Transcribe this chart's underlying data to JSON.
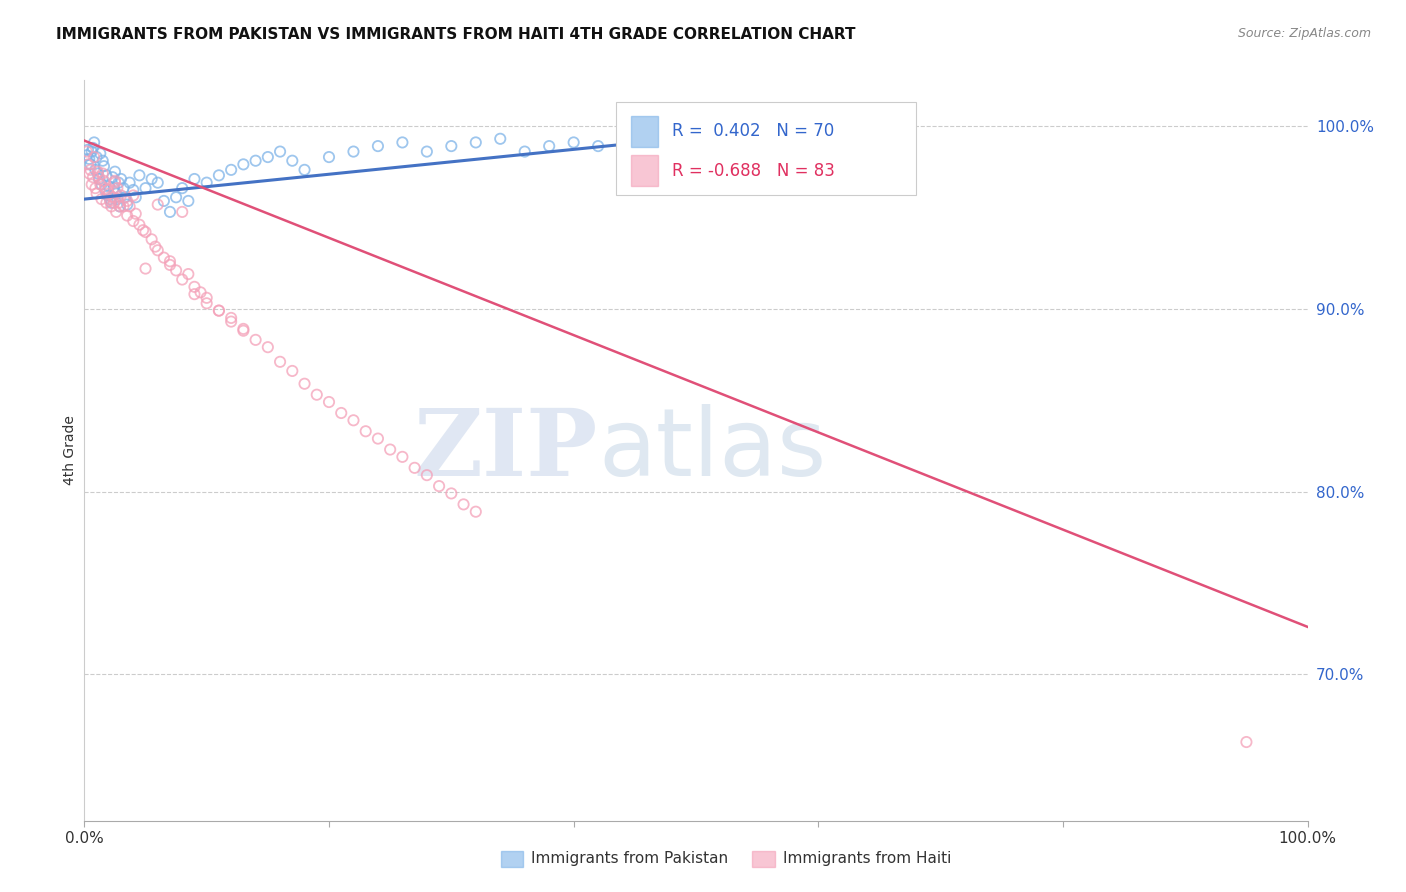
{
  "title": "IMMIGRANTS FROM PAKISTAN VS IMMIGRANTS FROM HAITI 4TH GRADE CORRELATION CHART",
  "source": "Source: ZipAtlas.com",
  "ylabel": "4th Grade",
  "xlim": [
    0.0,
    1.0
  ],
  "ylim": [
    0.62,
    1.025
  ],
  "yticks": [
    0.7,
    0.8,
    0.9,
    1.0
  ],
  "ytick_labels": [
    "70.0%",
    "80.0%",
    "90.0%",
    "100.0%"
  ],
  "pakistan_R": 0.402,
  "pakistan_N": 70,
  "haiti_R": -0.688,
  "haiti_N": 83,
  "pakistan_color": "#7EB3E8",
  "haiti_color": "#F4A0B8",
  "pakistan_line_color": "#4472C4",
  "haiti_line_color": "#E05078",
  "pakistan_scatter_x": [
    0.002,
    0.003,
    0.004,
    0.005,
    0.006,
    0.007,
    0.008,
    0.009,
    0.01,
    0.011,
    0.012,
    0.013,
    0.014,
    0.015,
    0.016,
    0.017,
    0.018,
    0.019,
    0.02,
    0.021,
    0.022,
    0.023,
    0.024,
    0.025,
    0.026,
    0.027,
    0.028,
    0.029,
    0.03,
    0.032,
    0.033,
    0.035,
    0.037,
    0.04,
    0.042,
    0.045,
    0.05,
    0.055,
    0.06,
    0.065,
    0.07,
    0.075,
    0.08,
    0.085,
    0.09,
    0.1,
    0.11,
    0.12,
    0.13,
    0.14,
    0.15,
    0.16,
    0.17,
    0.18,
    0.2,
    0.22,
    0.24,
    0.26,
    0.28,
    0.3,
    0.32,
    0.34,
    0.36,
    0.38,
    0.4,
    0.42,
    0.44,
    0.46,
    0.48,
    0.5
  ],
  "pakistan_scatter_y": [
    0.984,
    0.987,
    0.982,
    0.979,
    0.986,
    0.988,
    0.991,
    0.976,
    0.983,
    0.974,
    0.971,
    0.985,
    0.968,
    0.981,
    0.978,
    0.965,
    0.973,
    0.962,
    0.967,
    0.96,
    0.958,
    0.972,
    0.966,
    0.975,
    0.963,
    0.96,
    0.969,
    0.956,
    0.971,
    0.966,
    0.961,
    0.957,
    0.969,
    0.965,
    0.961,
    0.973,
    0.966,
    0.971,
    0.969,
    0.959,
    0.953,
    0.961,
    0.966,
    0.959,
    0.971,
    0.969,
    0.973,
    0.976,
    0.979,
    0.981,
    0.983,
    0.986,
    0.981,
    0.976,
    0.983,
    0.986,
    0.989,
    0.991,
    0.986,
    0.989,
    0.991,
    0.993,
    0.986,
    0.989,
    0.991,
    0.989,
    0.991,
    0.993,
    0.989,
    0.991
  ],
  "haiti_scatter_x": [
    0.002,
    0.003,
    0.004,
    0.005,
    0.006,
    0.007,
    0.008,
    0.009,
    0.01,
    0.011,
    0.012,
    0.013,
    0.014,
    0.015,
    0.016,
    0.017,
    0.018,
    0.019,
    0.02,
    0.021,
    0.022,
    0.023,
    0.024,
    0.025,
    0.026,
    0.027,
    0.028,
    0.029,
    0.03,
    0.032,
    0.035,
    0.037,
    0.04,
    0.042,
    0.045,
    0.048,
    0.05,
    0.055,
    0.058,
    0.06,
    0.065,
    0.07,
    0.075,
    0.08,
    0.085,
    0.09,
    0.095,
    0.1,
    0.11,
    0.12,
    0.13,
    0.14,
    0.15,
    0.16,
    0.17,
    0.18,
    0.19,
    0.2,
    0.21,
    0.22,
    0.23,
    0.24,
    0.25,
    0.26,
    0.27,
    0.28,
    0.29,
    0.3,
    0.31,
    0.32,
    0.04,
    0.06,
    0.08,
    0.1,
    0.12,
    0.05,
    0.07,
    0.09,
    0.11,
    0.13,
    0.025,
    0.035,
    0.95
  ],
  "haiti_scatter_y": [
    0.986,
    0.979,
    0.974,
    0.976,
    0.968,
    0.972,
    0.983,
    0.966,
    0.963,
    0.975,
    0.972,
    0.968,
    0.96,
    0.974,
    0.97,
    0.966,
    0.958,
    0.965,
    0.963,
    0.959,
    0.956,
    0.961,
    0.958,
    0.97,
    0.953,
    0.966,
    0.958,
    0.956,
    0.962,
    0.956,
    0.951,
    0.956,
    0.948,
    0.952,
    0.946,
    0.943,
    0.942,
    0.938,
    0.934,
    0.932,
    0.928,
    0.924,
    0.921,
    0.916,
    0.919,
    0.912,
    0.909,
    0.906,
    0.899,
    0.893,
    0.889,
    0.883,
    0.879,
    0.871,
    0.866,
    0.859,
    0.853,
    0.849,
    0.843,
    0.839,
    0.833,
    0.829,
    0.823,
    0.819,
    0.813,
    0.809,
    0.803,
    0.799,
    0.793,
    0.789,
    0.962,
    0.957,
    0.953,
    0.903,
    0.895,
    0.922,
    0.926,
    0.908,
    0.899,
    0.888,
    0.969,
    0.959,
    0.663
  ],
  "pakistan_trendline_x": [
    0.0,
    0.5
  ],
  "pakistan_trendline_y": [
    0.96,
    0.994
  ],
  "haiti_trendline_x": [
    0.0,
    1.0
  ],
  "haiti_trendline_y": [
    0.992,
    0.726
  ]
}
